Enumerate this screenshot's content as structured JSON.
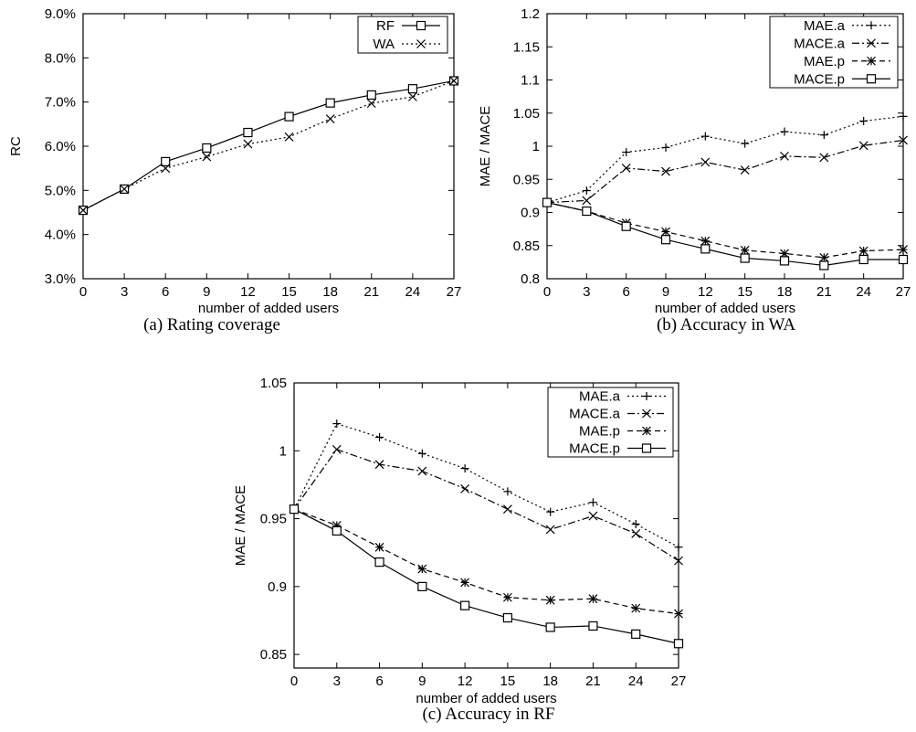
{
  "chart_data": [
    {
      "type": "line",
      "caption": "(a) Rating coverage",
      "xlabel": "number of added users",
      "ylabel": "RC",
      "x": [
        0,
        3,
        6,
        9,
        12,
        15,
        18,
        21,
        24,
        27
      ],
      "xticks": [
        "0",
        "3",
        "6",
        "9",
        "12",
        "15",
        "18",
        "21",
        "24",
        "27"
      ],
      "ylim": [
        3.0,
        9.0
      ],
      "yticks": [
        "3.0%",
        "4.0%",
        "5.0%",
        "6.0%",
        "7.0%",
        "8.0%",
        "9.0%"
      ],
      "ytick_values": [
        3,
        4,
        5,
        6,
        7,
        8,
        9
      ],
      "legend_position": "top-right",
      "series": [
        {
          "name": "RF",
          "marker": "square",
          "dash": "solid",
          "values": [
            4.55,
            5.03,
            5.65,
            5.96,
            6.31,
            6.67,
            6.98,
            7.16,
            7.3,
            7.48
          ]
        },
        {
          "name": "WA",
          "marker": "x",
          "dash": "dotted",
          "values": [
            4.55,
            5.03,
            5.5,
            5.76,
            6.05,
            6.21,
            6.62,
            6.97,
            7.12,
            7.48
          ]
        }
      ]
    },
    {
      "type": "line",
      "caption": "(b) Accuracy in WA",
      "xlabel": "number of added users",
      "ylabel": "MAE / MACE",
      "x": [
        0,
        3,
        6,
        9,
        12,
        15,
        18,
        21,
        24,
        27
      ],
      "xticks": [
        "0",
        "3",
        "6",
        "9",
        "12",
        "15",
        "18",
        "21",
        "24",
        "27"
      ],
      "ylim": [
        0.8,
        1.2
      ],
      "yticks": [
        "0.8",
        "0.85",
        "0.9",
        "0.95",
        "1",
        "1.05",
        "1.1",
        "1.15",
        "1.2"
      ],
      "ytick_values": [
        0.8,
        0.85,
        0.9,
        0.95,
        1.0,
        1.05,
        1.1,
        1.15,
        1.2
      ],
      "legend_position": "top-right",
      "series": [
        {
          "name": "MAE.a",
          "marker": "plus",
          "dash": "dotted",
          "values": [
            0.915,
            0.933,
            0.991,
            0.998,
            1.015,
            1.004,
            1.022,
            1.017,
            1.038,
            1.045
          ]
        },
        {
          "name": "MACE.a",
          "marker": "x",
          "dash": "dashdot",
          "values": [
            0.915,
            0.918,
            0.967,
            0.962,
            0.976,
            0.964,
            0.985,
            0.983,
            1.001,
            1.009
          ]
        },
        {
          "name": "MAE.p",
          "marker": "star",
          "dash": "dashed",
          "values": [
            0.915,
            0.902,
            0.884,
            0.871,
            0.857,
            0.843,
            0.838,
            0.832,
            0.842,
            0.844
          ]
        },
        {
          "name": "MACE.p",
          "marker": "square",
          "dash": "solid",
          "values": [
            0.915,
            0.902,
            0.879,
            0.859,
            0.845,
            0.831,
            0.827,
            0.82,
            0.829,
            0.829
          ]
        }
      ]
    },
    {
      "type": "line",
      "caption": "(c) Accuracy in RF",
      "xlabel": "number of added users",
      "ylabel": "MAE / MACE",
      "x": [
        0,
        3,
        6,
        9,
        12,
        15,
        18,
        21,
        24,
        27
      ],
      "xticks": [
        "0",
        "3",
        "6",
        "9",
        "12",
        "15",
        "18",
        "21",
        "24",
        "27"
      ],
      "ylim": [
        0.84,
        1.05
      ],
      "yticks": [
        "0.85",
        "0.9",
        "0.95",
        "1",
        "1.05"
      ],
      "ytick_values": [
        0.85,
        0.9,
        0.95,
        1.0,
        1.05
      ],
      "legend_position": "top-right",
      "series": [
        {
          "name": "MAE.a",
          "marker": "plus",
          "dash": "dotted",
          "values": [
            0.957,
            1.02,
            1.01,
            0.998,
            0.987,
            0.97,
            0.955,
            0.962,
            0.946,
            0.929
          ]
        },
        {
          "name": "MACE.a",
          "marker": "x",
          "dash": "dashdot",
          "values": [
            0.957,
            1.001,
            0.99,
            0.985,
            0.972,
            0.957,
            0.942,
            0.952,
            0.939,
            0.919
          ]
        },
        {
          "name": "MAE.p",
          "marker": "star",
          "dash": "dashed",
          "values": [
            0.957,
            0.945,
            0.929,
            0.913,
            0.903,
            0.892,
            0.89,
            0.891,
            0.884,
            0.88
          ]
        },
        {
          "name": "MACE.p",
          "marker": "square",
          "dash": "solid",
          "values": [
            0.957,
            0.941,
            0.918,
            0.9,
            0.886,
            0.877,
            0.87,
            0.871,
            0.865,
            0.858
          ]
        }
      ]
    }
  ]
}
